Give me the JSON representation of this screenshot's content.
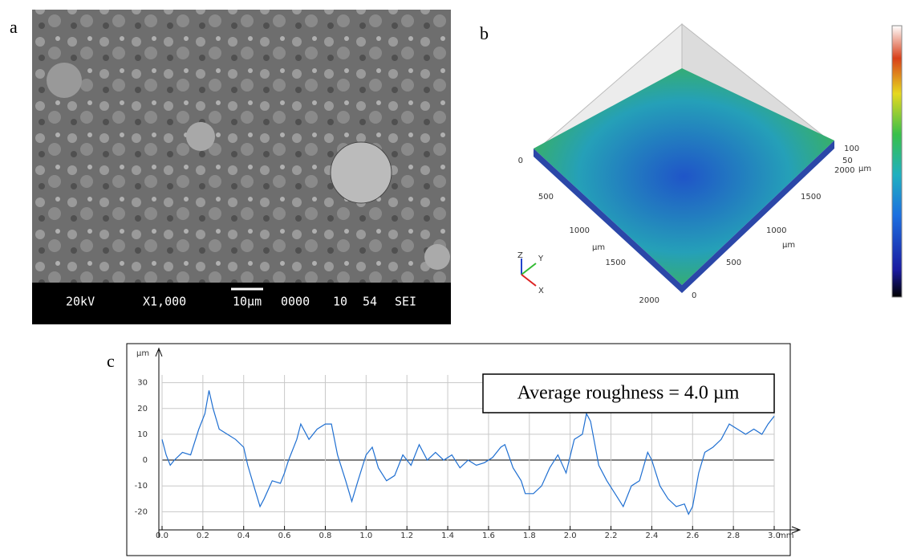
{
  "panel_a": {
    "label": "a",
    "info_bar": [
      "20kV",
      "X1,000",
      "10μm",
      "0000",
      "10",
      "54",
      "SEI"
    ]
  },
  "panel_b": {
    "label": "b",
    "left_axis": {
      "ticks": [
        "0",
        "500",
        "1000",
        "1500",
        "2000"
      ],
      "unit": "µm"
    },
    "right_axis": {
      "ticks": [
        "0",
        "500",
        "1000",
        "1500",
        "2000"
      ],
      "unit": "µm"
    },
    "z_axis": {
      "ticks": [
        "100",
        "50"
      ],
      "unit": "µm"
    },
    "triad": [
      "Z",
      "Y",
      "X"
    ]
  },
  "chart_data": {
    "type": "line",
    "label": "c",
    "y_label": "µm",
    "x_label": "mm",
    "annotation": "Average roughness = 4.0 µm",
    "color": "#1f6fd1",
    "grid": true,
    "xlim": [
      0,
      3.0
    ],
    "ylim": [
      -25.5,
      33
    ],
    "xticks": [
      {
        "value": 0,
        "label": "0.0"
      },
      0.2,
      0.4,
      0.6,
      0.8,
      {
        "value": 1,
        "label": "1.0"
      },
      1.2,
      1.4,
      1.6,
      1.8,
      {
        "value": 2,
        "label": "2.0"
      },
      2.2,
      2.4,
      2.6,
      2.8,
      {
        "value": 3,
        "label": "3.0"
      }
    ],
    "yticks": [
      -20,
      -10,
      0,
      10,
      20,
      30
    ],
    "x": [
      0,
      0.02,
      0.04,
      0.06,
      0.1,
      0.14,
      0.18,
      0.21,
      0.23,
      0.25,
      0.28,
      0.32,
      0.36,
      0.4,
      0.42,
      0.45,
      0.48,
      0.5,
      0.54,
      0.58,
      0.6,
      0.62,
      0.66,
      0.68,
      0.72,
      0.76,
      0.8,
      0.83,
      0.86,
      0.9,
      0.93,
      0.96,
      1.0,
      1.03,
      1.06,
      1.1,
      1.14,
      1.18,
      1.22,
      1.26,
      1.3,
      1.34,
      1.38,
      1.42,
      1.46,
      1.5,
      1.54,
      1.58,
      1.62,
      1.66,
      1.68,
      1.72,
      1.76,
      1.78,
      1.82,
      1.86,
      1.9,
      1.94,
      1.98,
      2.02,
      2.06,
      2.08,
      2.1,
      2.14,
      2.18,
      2.22,
      2.26,
      2.3,
      2.34,
      2.38,
      2.4,
      2.44,
      2.48,
      2.52,
      2.56,
      2.58,
      2.6,
      2.63,
      2.66,
      2.7,
      2.74,
      2.78,
      2.82,
      2.86,
      2.9,
      2.94,
      2.97,
      3.0
    ],
    "values": [
      8,
      2,
      -2,
      0,
      3,
      2,
      12,
      18,
      27,
      20,
      12,
      10,
      8,
      5,
      -2,
      -10,
      -18,
      -15,
      -8,
      -9,
      -5,
      0,
      8,
      14,
      8,
      12,
      14,
      14,
      2,
      -8,
      -16,
      -8,
      2,
      5,
      -3,
      -8,
      -6,
      2,
      -2,
      6,
      0,
      3,
      0,
      2,
      -3,
      0,
      -2,
      -1,
      1,
      5,
      6,
      -3,
      -8,
      -13,
      -13,
      -10,
      -3,
      2,
      -5,
      8,
      10,
      18,
      15,
      -2,
      -8,
      -13,
      -18,
      -10,
      -8,
      3,
      0,
      -10,
      -15,
      -18,
      -17,
      -21,
      -18,
      -5,
      3,
      5,
      8,
      14,
      12,
      10,
      12,
      10,
      14,
      17
    ]
  }
}
